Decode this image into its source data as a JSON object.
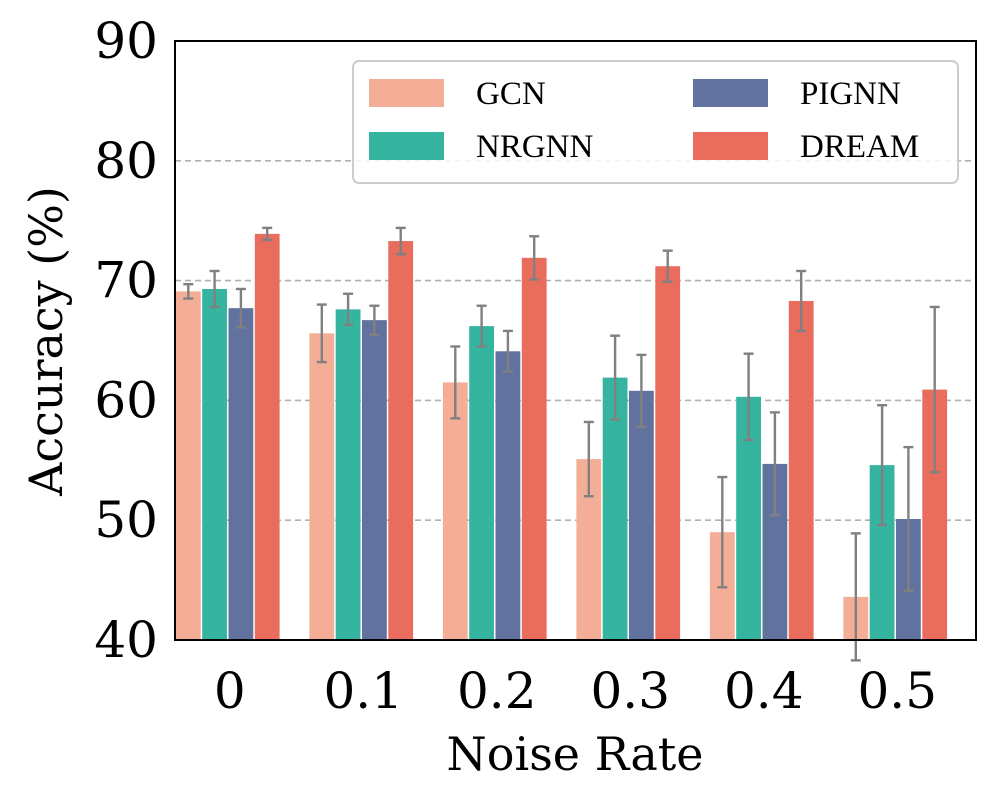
{
  "chart_data": {
    "type": "bar",
    "title": "",
    "xlabel": "Noise Rate",
    "ylabel": "Accuracy (%)",
    "categories": [
      "0",
      "0.1",
      "0.2",
      "0.3",
      "0.4",
      "0.5"
    ],
    "ylim": [
      40,
      90
    ],
    "yticks": [
      "40",
      "50",
      "60",
      "70",
      "80",
      "90"
    ],
    "grid": "horizontal dashed",
    "legend_position": "top-right",
    "series": [
      {
        "name": "GCN",
        "color": "#f4ae97",
        "values": [
          69.1,
          65.6,
          61.5,
          55.1,
          49.0,
          43.6
        ],
        "errors": [
          0.6,
          2.4,
          3.0,
          3.1,
          4.6,
          5.3
        ]
      },
      {
        "name": "NRGNN",
        "color": "#35b5a0",
        "values": [
          69.3,
          67.6,
          66.2,
          61.9,
          60.3,
          54.6
        ],
        "errors": [
          1.5,
          1.3,
          1.7,
          3.5,
          3.6,
          5.0
        ]
      },
      {
        "name": "PIGNN",
        "color": "#62729f",
        "values": [
          67.7,
          66.7,
          64.1,
          60.8,
          54.7,
          50.1
        ],
        "errors": [
          1.6,
          1.2,
          1.7,
          3.0,
          4.3,
          6.0
        ]
      },
      {
        "name": "DREAM",
        "color": "#ea6c5d",
        "values": [
          73.9,
          73.3,
          71.9,
          71.2,
          68.3,
          60.9
        ],
        "errors": [
          0.5,
          1.1,
          1.8,
          1.3,
          2.5,
          6.9
        ]
      }
    ]
  }
}
